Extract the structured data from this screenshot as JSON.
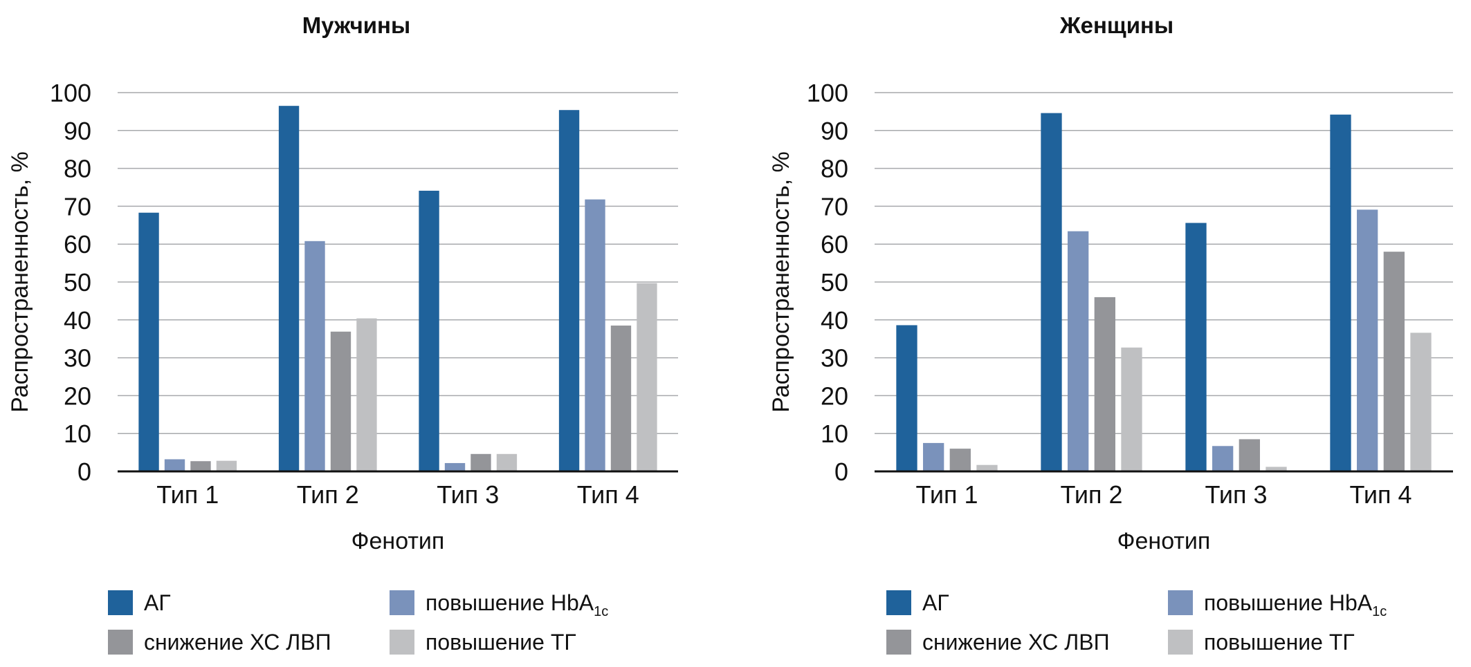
{
  "chart_data": [
    {
      "type": "bar",
      "title": "Мужчины",
      "xlabel": "Фенотип",
      "ylabel": "Распространенность, %",
      "ylim": [
        0,
        100
      ],
      "yticks": [
        "0",
        "10",
        "20",
        "30",
        "40",
        "50",
        "60",
        "70",
        "80",
        "90",
        "100"
      ],
      "grid": true,
      "categories": [
        "Тип 1",
        "Тип 2",
        "Тип 3",
        "Тип 4"
      ],
      "series": [
        {
          "name": "АГ",
          "color": "#1f629b",
          "values": [
            68.3,
            96.5,
            74.1,
            95.4
          ]
        },
        {
          "name": "повышение HbA",
          "sub": "1c",
          "color": "#7a92bb",
          "values": [
            3.2,
            60.8,
            2.2,
            71.8
          ]
        },
        {
          "name": "снижение ХС ЛВП",
          "color": "#949599",
          "values": [
            2.7,
            36.9,
            4.6,
            38.5
          ]
        },
        {
          "name": "повышение ТГ",
          "color": "#bfc0c2",
          "values": [
            2.8,
            40.4,
            4.6,
            49.7
          ]
        }
      ],
      "legend_position": "bottom"
    },
    {
      "type": "bar",
      "title": "Женщины",
      "xlabel": "Фенотип",
      "ylabel": "Распространенность, %",
      "ylim": [
        0,
        100
      ],
      "yticks": [
        "0",
        "10",
        "20",
        "30",
        "40",
        "50",
        "60",
        "70",
        "80",
        "90",
        "100"
      ],
      "grid": true,
      "categories": [
        "Тип 1",
        "Тип 2",
        "Тип 3",
        "Тип 4"
      ],
      "series": [
        {
          "name": "АГ",
          "color": "#1f629b",
          "values": [
            38.6,
            94.6,
            65.6,
            94.2
          ]
        },
        {
          "name": "повышение HbA",
          "sub": "1c",
          "color": "#7a92bb",
          "values": [
            7.5,
            63.4,
            6.7,
            69.1
          ]
        },
        {
          "name": "снижение ХС ЛВП",
          "color": "#949599",
          "values": [
            6.0,
            46.0,
            8.5,
            58.0
          ]
        },
        {
          "name": "повышение ТГ",
          "color": "#bfc0c2",
          "values": [
            1.7,
            32.7,
            1.2,
            36.6
          ]
        }
      ],
      "legend_position": "bottom"
    }
  ]
}
